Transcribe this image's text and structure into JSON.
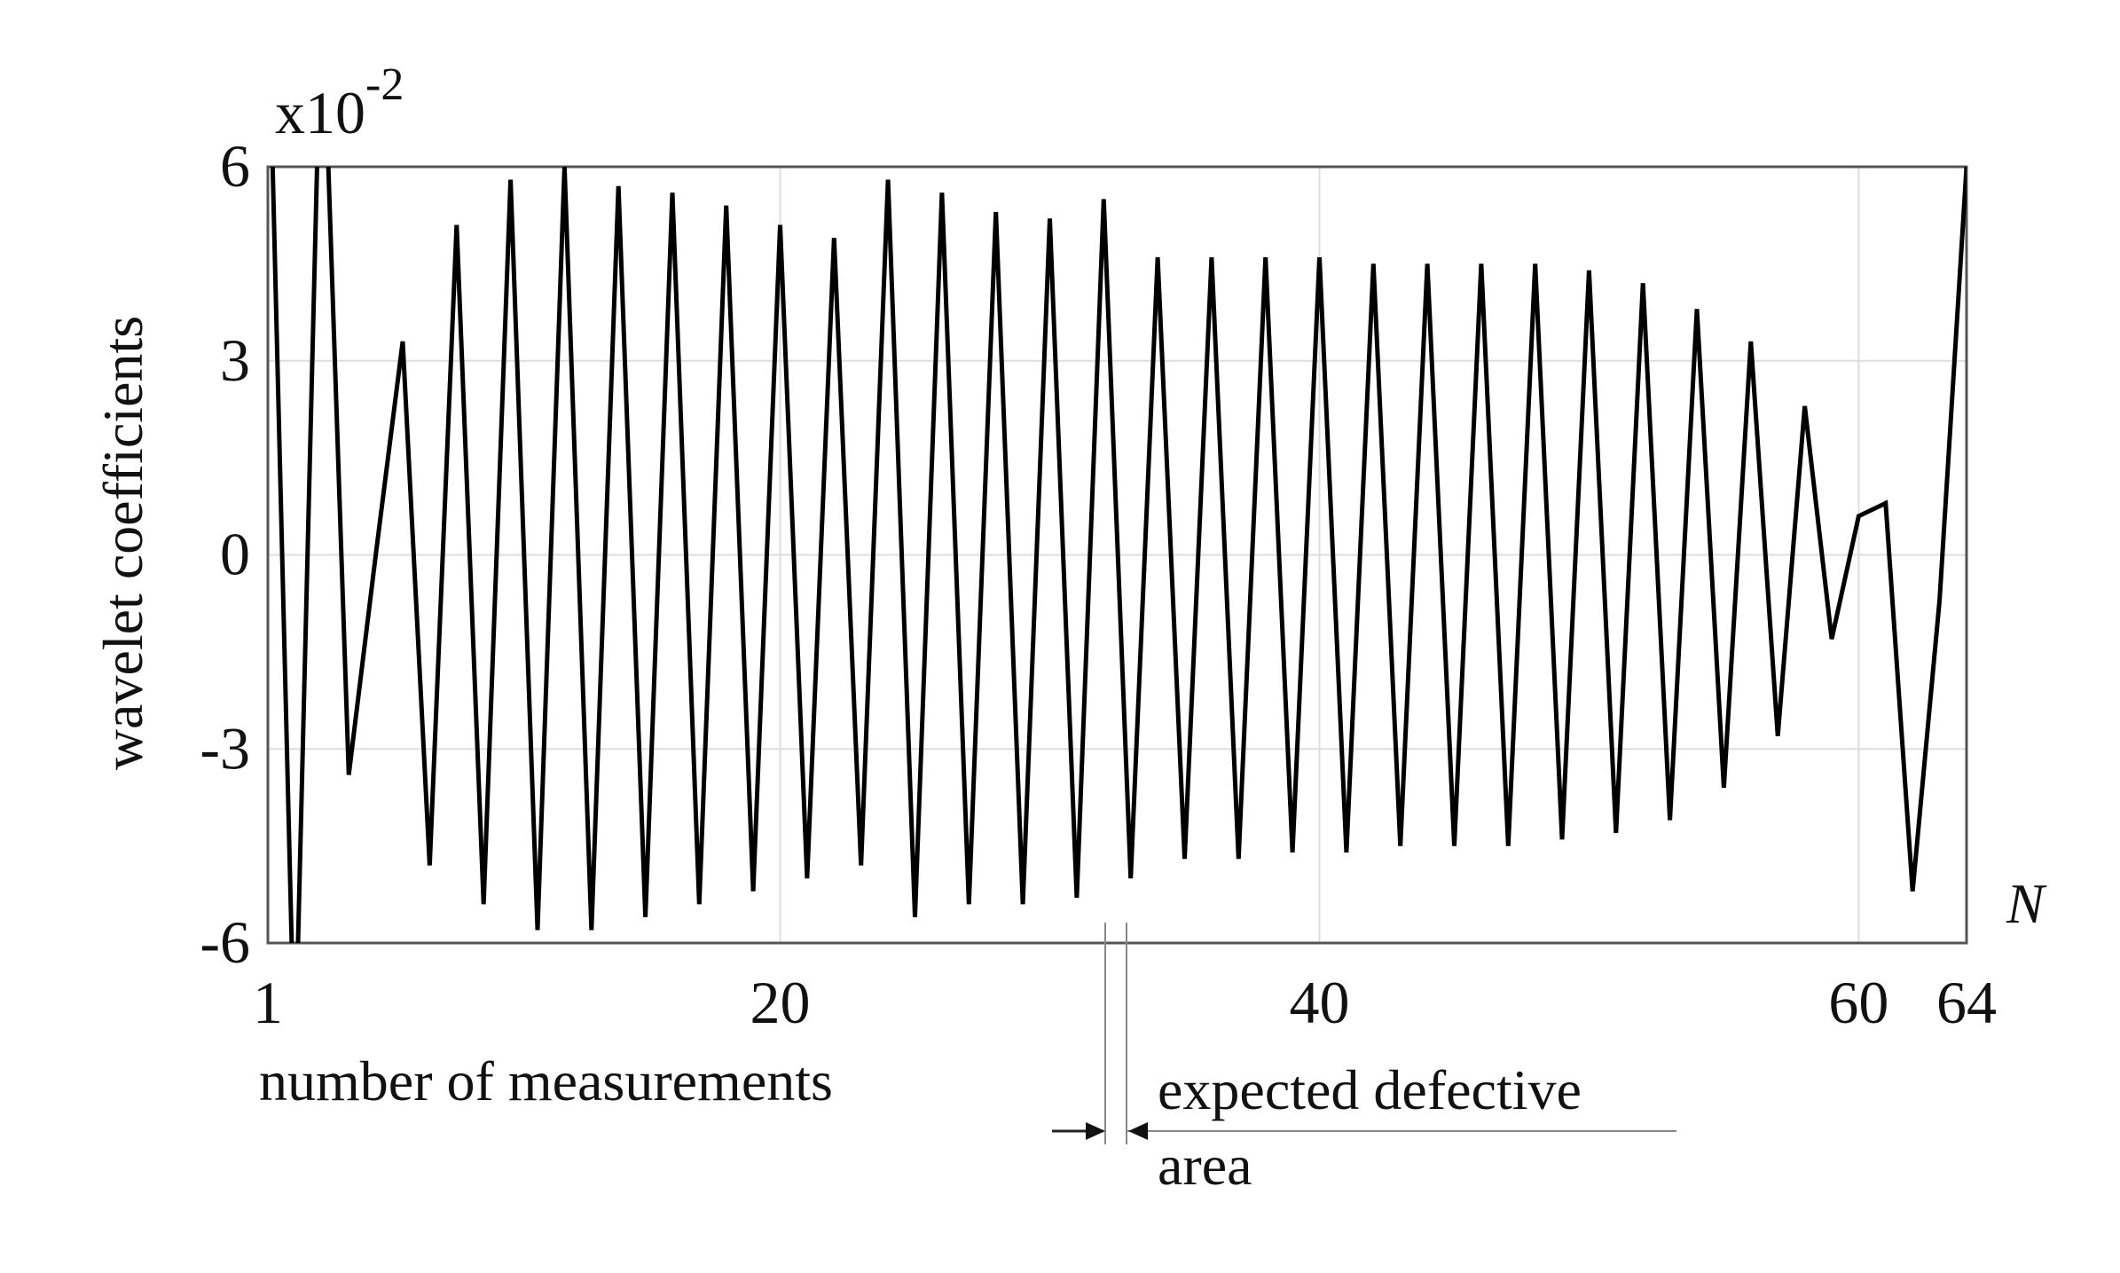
{
  "chart_data": {
    "type": "line",
    "xlabel": "number of measurements",
    "ylabel": "wavelet coefficients",
    "x_axis_symbol": "N",
    "y_multiplier": {
      "base": "x10",
      "exponent": "-2"
    },
    "xlim": [
      1,
      64
    ],
    "ylim": [
      -6,
      6
    ],
    "x_ticks": [
      1,
      20,
      40,
      60,
      64
    ],
    "y_ticks": [
      6,
      3,
      0,
      -3,
      -6
    ],
    "grid": true,
    "series_color": "#000000",
    "annotation": {
      "text_line1": "expected defective",
      "text_line2": "area",
      "x_range": [
        32,
        33
      ]
    },
    "x": [
      1,
      2,
      3,
      4,
      5,
      6,
      7,
      8,
      9,
      10,
      11,
      12,
      13,
      14,
      15,
      16,
      17,
      18,
      19,
      20,
      21,
      22,
      23,
      24,
      25,
      26,
      27,
      28,
      29,
      30,
      31,
      32,
      33,
      34,
      35,
      36,
      37,
      38,
      39,
      40,
      41,
      42,
      43,
      44,
      45,
      46,
      47,
      48,
      49,
      50,
      51,
      52,
      53,
      54,
      55,
      56,
      57,
      58,
      59,
      60,
      61,
      62,
      63,
      64
    ],
    "y": [
      9.0,
      -8.0,
      9.0,
      -3.4,
      0.0,
      3.3,
      -4.8,
      5.1,
      -5.4,
      5.8,
      -5.8,
      6.0,
      -5.8,
      5.7,
      -5.6,
      5.6,
      -5.4,
      5.4,
      -5.2,
      5.1,
      -5.0,
      4.9,
      -4.8,
      5.8,
      -5.6,
      5.6,
      -5.4,
      5.3,
      -5.4,
      5.2,
      -5.3,
      5.5,
      -5.0,
      4.6,
      -4.7,
      4.6,
      -4.7,
      4.6,
      -4.6,
      4.6,
      -4.6,
      4.5,
      -4.5,
      4.5,
      -4.5,
      4.5,
      -4.5,
      4.5,
      -4.4,
      4.4,
      -4.3,
      4.2,
      -4.1,
      3.8,
      -3.6,
      3.3,
      -2.8,
      2.3,
      -1.3,
      0.6,
      0.8,
      -5.2,
      -0.7,
      6.0
    ]
  }
}
